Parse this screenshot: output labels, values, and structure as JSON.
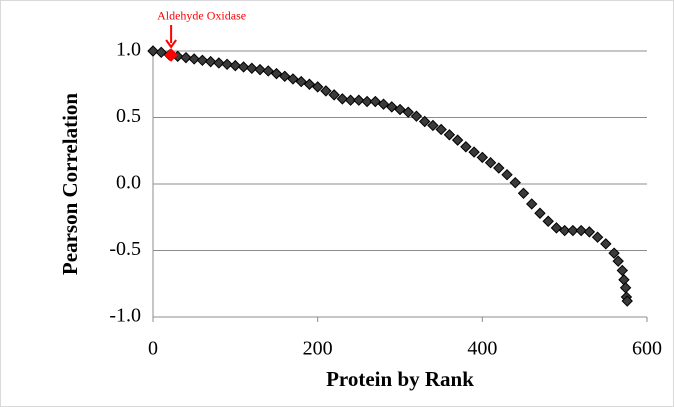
{
  "chart_data": {
    "type": "scatter",
    "x_label": "Protein by Rank",
    "y_label": "Pearson Correlation",
    "xlim": [
      0,
      600
    ],
    "xticks": [
      0,
      200,
      400,
      600
    ],
    "ylim": [
      -1,
      1
    ],
    "yticks": [
      {
        "value": -1,
        "label": "-1.0"
      },
      -0.5,
      {
        "value": 0,
        "label": "0.0"
      },
      0.5,
      {
        "value": 1,
        "label": "1.0"
      }
    ],
    "grid": true,
    "series": [
      {
        "color": "#3a3a3a",
        "x": [
          0,
          10,
          20,
          30,
          40,
          50,
          60,
          70,
          80,
          90,
          100,
          110,
          120,
          130,
          140,
          150,
          160,
          170,
          180,
          190,
          200,
          210,
          220,
          230,
          240,
          250,
          260,
          270,
          280,
          290,
          300,
          310,
          320,
          330,
          340,
          350,
          360,
          370,
          380,
          390,
          400,
          410,
          420,
          430,
          440,
          450,
          460,
          470,
          480,
          490,
          500,
          510,
          520,
          530,
          540,
          550,
          560,
          565,
          570,
          572,
          574,
          575,
          576
        ],
        "values": [
          1.0,
          0.99,
          0.97,
          0.96,
          0.95,
          0.94,
          0.93,
          0.92,
          0.91,
          0.9,
          0.89,
          0.88,
          0.87,
          0.86,
          0.85,
          0.83,
          0.81,
          0.79,
          0.77,
          0.75,
          0.73,
          0.7,
          0.67,
          0.64,
          0.63,
          0.63,
          0.62,
          0.62,
          0.6,
          0.58,
          0.56,
          0.54,
          0.51,
          0.47,
          0.44,
          0.41,
          0.37,
          0.33,
          0.28,
          0.24,
          0.2,
          0.16,
          0.12,
          0.07,
          0.01,
          -0.07,
          -0.15,
          -0.22,
          -0.28,
          -0.33,
          -0.35,
          -0.35,
          -0.35,
          -0.36,
          -0.4,
          -0.45,
          -0.52,
          -0.58,
          -0.65,
          -0.72,
          -0.78,
          -0.85,
          -0.88
        ]
      }
    ],
    "annotation": {
      "text": "Aldehyde Oxidase",
      "x": 22,
      "y": 0.97,
      "color": "#ff0000"
    }
  }
}
